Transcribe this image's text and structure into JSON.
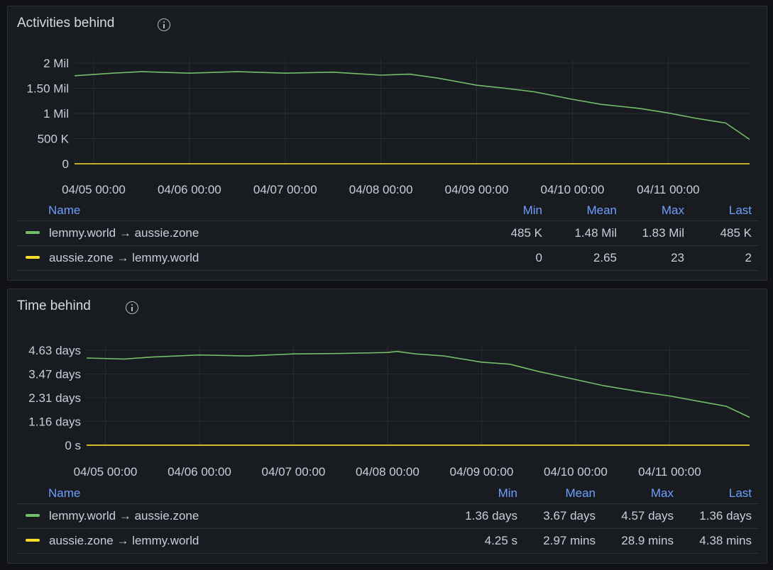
{
  "colors": {
    "green": "#73bf69",
    "yellow": "#fade2a"
  },
  "panels": [
    {
      "title": "Activities behind",
      "legend": {
        "headers": {
          "name": "Name",
          "min": "Min",
          "mean": "Mean",
          "max": "Max",
          "last": "Last"
        },
        "rows": [
          {
            "name": "lemmy.world → aussie.zone",
            "min": "485 K",
            "mean": "1.48 Mil",
            "max": "1.83 Mil",
            "last": "485 K"
          },
          {
            "name": "aussie.zone → lemmy.world",
            "min": "0",
            "mean": "2.65",
            "max": "23",
            "last": "2"
          }
        ]
      }
    },
    {
      "title": "Time behind",
      "legend": {
        "headers": {
          "name": "Name",
          "min": "Min",
          "mean": "Mean",
          "max": "Max",
          "last": "Last"
        },
        "rows": [
          {
            "name": "lemmy.world → aussie.zone",
            "min": "1.36 days",
            "mean": "3.67 days",
            "max": "4.57 days",
            "last": "1.36 days"
          },
          {
            "name": "aussie.zone → lemmy.world",
            "min": "4.25 s",
            "mean": "2.97 mins",
            "max": "28.9 mins",
            "last": "4.38 mins"
          }
        ]
      }
    }
  ],
  "chart_data": [
    {
      "type": "line",
      "title": "Activities behind",
      "x_unit": "days since 04/05 00:00",
      "x_ticks": [
        "04/05 00:00",
        "04/06 00:00",
        "04/07 00:00",
        "04/08 00:00",
        "04/09 00:00",
        "04/10 00:00",
        "04/11 00:00"
      ],
      "xlim": [
        -0.2,
        6.85
      ],
      "y_ticks": [
        {
          "value": 0,
          "label": "0"
        },
        {
          "value": 500000,
          "label": "500 K"
        },
        {
          "value": 1000000,
          "label": "1 Mil"
        },
        {
          "value": 1500000,
          "label": "1.50 Mil"
        },
        {
          "value": 2000000,
          "label": "2 Mil"
        }
      ],
      "ylim": [
        0,
        2000000
      ],
      "grid": true,
      "series": [
        {
          "name": "lemmy.world → aussie.zone",
          "color": "green",
          "points": [
            [
              -0.2,
              1750000
            ],
            [
              0.2,
              1800000
            ],
            [
              0.5,
              1830000
            ],
            [
              1.0,
              1800000
            ],
            [
              1.5,
              1830000
            ],
            [
              2.0,
              1800000
            ],
            [
              2.5,
              1820000
            ],
            [
              3.0,
              1760000
            ],
            [
              3.3,
              1780000
            ],
            [
              3.6,
              1700000
            ],
            [
              4.0,
              1560000
            ],
            [
              4.3,
              1500000
            ],
            [
              4.6,
              1430000
            ],
            [
              5.0,
              1280000
            ],
            [
              5.3,
              1180000
            ],
            [
              5.7,
              1100000
            ],
            [
              6.0,
              1010000
            ],
            [
              6.3,
              900000
            ],
            [
              6.6,
              810000
            ],
            [
              6.85,
              485000
            ]
          ]
        },
        {
          "name": "aussie.zone → lemmy.world",
          "color": "yellow",
          "points": [
            [
              -0.2,
              0
            ],
            [
              6.85,
              0
            ]
          ]
        }
      ]
    },
    {
      "type": "line",
      "title": "Time behind",
      "x_unit": "days since 04/05 00:00",
      "x_ticks": [
        "04/05 00:00",
        "04/06 00:00",
        "04/07 00:00",
        "04/08 00:00",
        "04/09 00:00",
        "04/10 00:00",
        "04/11 00:00"
      ],
      "xlim": [
        -0.2,
        6.85
      ],
      "y_ticks": [
        {
          "value": 0,
          "label": "0 s"
        },
        {
          "value": 1.16,
          "label": "1.16 days"
        },
        {
          "value": 2.31,
          "label": "2.31 days"
        },
        {
          "value": 3.47,
          "label": "3.47 days"
        },
        {
          "value": 4.63,
          "label": "4.63 days"
        }
      ],
      "ylim": [
        0,
        4.63
      ],
      "grid": true,
      "series": [
        {
          "name": "lemmy.world → aussie.zone",
          "color": "green",
          "points": [
            [
              -0.2,
              4.25
            ],
            [
              0.2,
              4.2
            ],
            [
              0.5,
              4.3
            ],
            [
              1.0,
              4.4
            ],
            [
              1.5,
              4.35
            ],
            [
              2.0,
              4.45
            ],
            [
              2.5,
              4.47
            ],
            [
              3.0,
              4.52
            ],
            [
              3.1,
              4.57
            ],
            [
              3.3,
              4.45
            ],
            [
              3.6,
              4.35
            ],
            [
              4.0,
              4.05
            ],
            [
              4.3,
              3.95
            ],
            [
              4.6,
              3.6
            ],
            [
              5.0,
              3.2
            ],
            [
              5.3,
              2.9
            ],
            [
              5.7,
              2.6
            ],
            [
              6.0,
              2.4
            ],
            [
              6.3,
              2.15
            ],
            [
              6.6,
              1.9
            ],
            [
              6.85,
              1.36
            ]
          ]
        },
        {
          "name": "aussie.zone → lemmy.world",
          "color": "yellow",
          "points": [
            [
              -0.2,
              0.002
            ],
            [
              6.85,
              0.003
            ]
          ]
        }
      ]
    }
  ]
}
